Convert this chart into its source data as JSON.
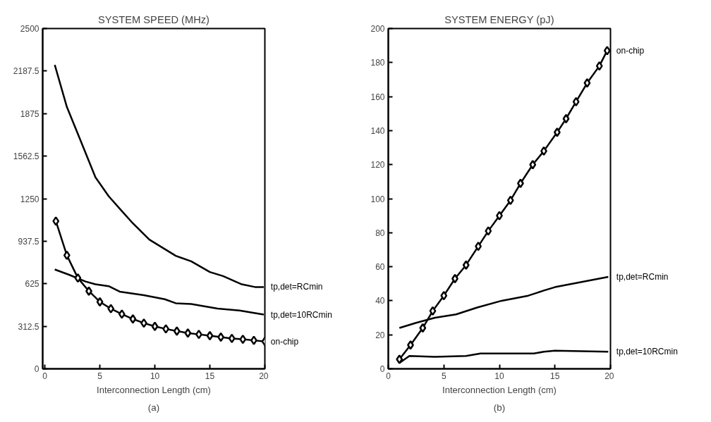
{
  "chart_data": [
    {
      "type": "line",
      "title": "SYSTEM SPEED (MHz)",
      "xlabel": "Interconnection Length (cm)",
      "annotations": [
        "(a)"
      ],
      "xlim": [
        -0.2,
        20
      ],
      "xticks": [
        0,
        5,
        10,
        15,
        20
      ],
      "ylim": [
        0,
        2500
      ],
      "yticks": [
        0,
        312.5,
        625,
        937.5,
        1250,
        1562.5,
        1875,
        2187.5,
        2500
      ],
      "grid": false,
      "line_style": "solid",
      "series": [
        {
          "name": "tp,det=RCmin",
          "color": "#000000",
          "marker": "none",
          "x": [
            0.9,
            2.0,
            3.2,
            4.6,
            5.8,
            6.9,
            8.0,
            9.5,
            11.9,
            13.3,
            15,
            16.2,
            17.9,
            19.1,
            19.9
          ],
          "values": [
            2233,
            1924,
            1686,
            1407,
            1268,
            1168,
            1069,
            949,
            830,
            790,
            711,
            681,
            621,
            601,
            601
          ]
        },
        {
          "name": "tp,det=10RCmin",
          "color": "#000000",
          "marker": "none",
          "x": [
            0.9,
            2.2,
            3.7,
            4.6,
            5.8,
            6.8,
            9.0,
            10.9,
            11.9,
            13.3,
            15.7,
            17.7,
            19.9
          ],
          "values": [
            730,
            691,
            641,
            621,
            607,
            567,
            541,
            511,
            482,
            476,
            442,
            428,
            398
          ]
        },
        {
          "name": "on-chip",
          "color": "#000000",
          "marker": "diamond",
          "x": [
            1,
            2,
            3,
            4,
            5,
            6,
            7,
            8,
            9,
            10,
            11,
            12,
            13,
            14,
            15,
            16,
            17,
            18,
            19,
            20
          ],
          "values": [
            1085,
            834,
            667,
            571,
            492,
            442,
            402,
            366,
            336,
            312,
            293,
            277,
            263,
            253,
            243,
            233,
            223,
            217,
            209,
            201
          ]
        }
      ]
    },
    {
      "type": "line",
      "title": "SYSTEM ENERGY (pJ)",
      "xlabel": "Interconnection Length (cm)",
      "annotations": [
        "(b)"
      ],
      "xlim": [
        0,
        20
      ],
      "xticks": [
        0,
        5,
        10,
        15,
        20
      ],
      "ylim": [
        0,
        200
      ],
      "yticks": [
        0,
        20,
        40,
        60,
        80,
        100,
        120,
        140,
        160,
        180,
        200
      ],
      "grid": false,
      "line_style": "solid",
      "series": [
        {
          "name": "on-chip",
          "color": "#000000",
          "marker": "diamond",
          "x": [
            1.0,
            2.0,
            3.1,
            4.0,
            5.0,
            6.0,
            7.0,
            8.1,
            9.0,
            10,
            11,
            11.9,
            13,
            14,
            15.2,
            16,
            16.9,
            17.9,
            19,
            19.7
          ],
          "values": [
            5.6,
            14,
            24,
            34,
            43,
            53,
            61,
            72,
            81,
            90,
            99,
            109,
            120,
            128,
            139,
            147,
            157,
            168,
            178,
            187
          ]
        },
        {
          "name": "tp,det=RCmin",
          "color": "#000000",
          "marker": "none",
          "x": [
            1.0,
            2.5,
            4.2,
            6.1,
            8.0,
            10.2,
            12.6,
            14.0,
            15,
            17.4,
            19.8
          ],
          "values": [
            24,
            27,
            30,
            32,
            36,
            40,
            43,
            46,
            48,
            51,
            54
          ]
        },
        {
          "name": "tp,det=10RCmin",
          "color": "#000000",
          "marker": "none",
          "x": [
            1.0,
            1.9,
            4.2,
            7.0,
            8.3,
            13.1,
            14,
            15,
            19.8
          ],
          "values": [
            3.4,
            7.6,
            7,
            7.6,
            9,
            9,
            10,
            10.7,
            10
          ]
        }
      ]
    }
  ]
}
